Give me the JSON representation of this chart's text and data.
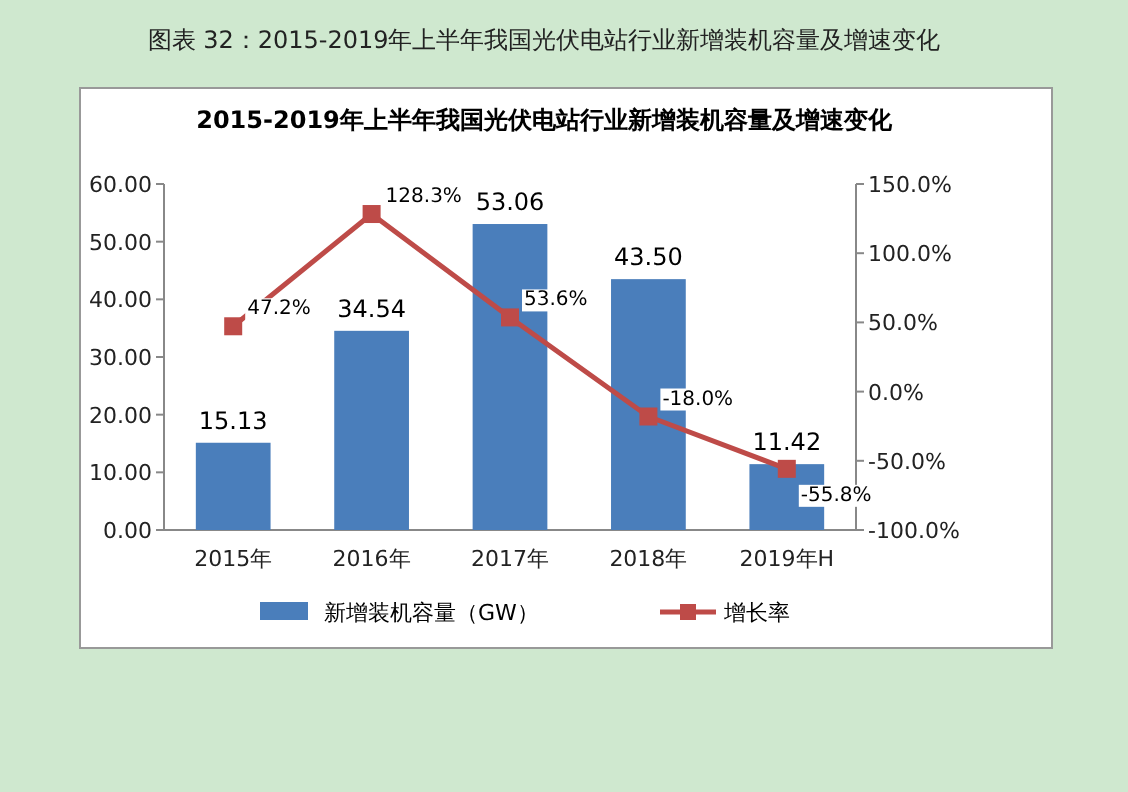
{
  "chart_data": {
    "type": "bar",
    "title": "图表 32：2015-2019年上半年我国光伏电站行业新增装机容量及增速变化",
    "subtitle": "2015-2019年上半年我国光伏电站行业新增装机容量及增速变化",
    "categories": [
      "2015年",
      "2016年",
      "2017年",
      "2018年",
      "2019年H"
    ],
    "series": [
      {
        "name": "新增装机容量（GW）",
        "type": "bar",
        "color": "#4a7ebb",
        "values": [
          15.13,
          34.54,
          53.06,
          43.5,
          11.42
        ],
        "value_labels": [
          "15.13",
          "34.54",
          "53.06",
          "43.50",
          "11.42"
        ]
      },
      {
        "name": "增长率",
        "type": "line",
        "axis": "y2",
        "marker": "square",
        "color": "#be4b48",
        "values": [
          47.2,
          128.3,
          53.6,
          -18.0,
          -55.8
        ],
        "value_labels": [
          "47.2%",
          "128.3%",
          "53.6%",
          "-18.0%",
          "-55.8%"
        ]
      }
    ],
    "ylim": [
      0,
      60
    ],
    "yticks": [
      {
        "value": 0,
        "label": "0.00"
      },
      {
        "value": 10,
        "label": "10.00"
      },
      {
        "value": 20,
        "label": "20.00"
      },
      {
        "value": 30,
        "label": "30.00"
      },
      {
        "value": 40,
        "label": "40.00"
      },
      {
        "value": 50,
        "label": "50.00"
      },
      {
        "value": 60,
        "label": "60.00"
      }
    ],
    "y2lim": [
      -100,
      150
    ],
    "y2ticks": [
      {
        "value": -100,
        "label": "-100.0%"
      },
      {
        "value": -50,
        "label": "-50.0%"
      },
      {
        "value": 0,
        "label": "0.0%"
      },
      {
        "value": 50,
        "label": "50.0%"
      },
      {
        "value": 100,
        "label": "100.0%"
      },
      {
        "value": 150,
        "label": "150.0%"
      }
    ],
    "legend": "bottom"
  }
}
